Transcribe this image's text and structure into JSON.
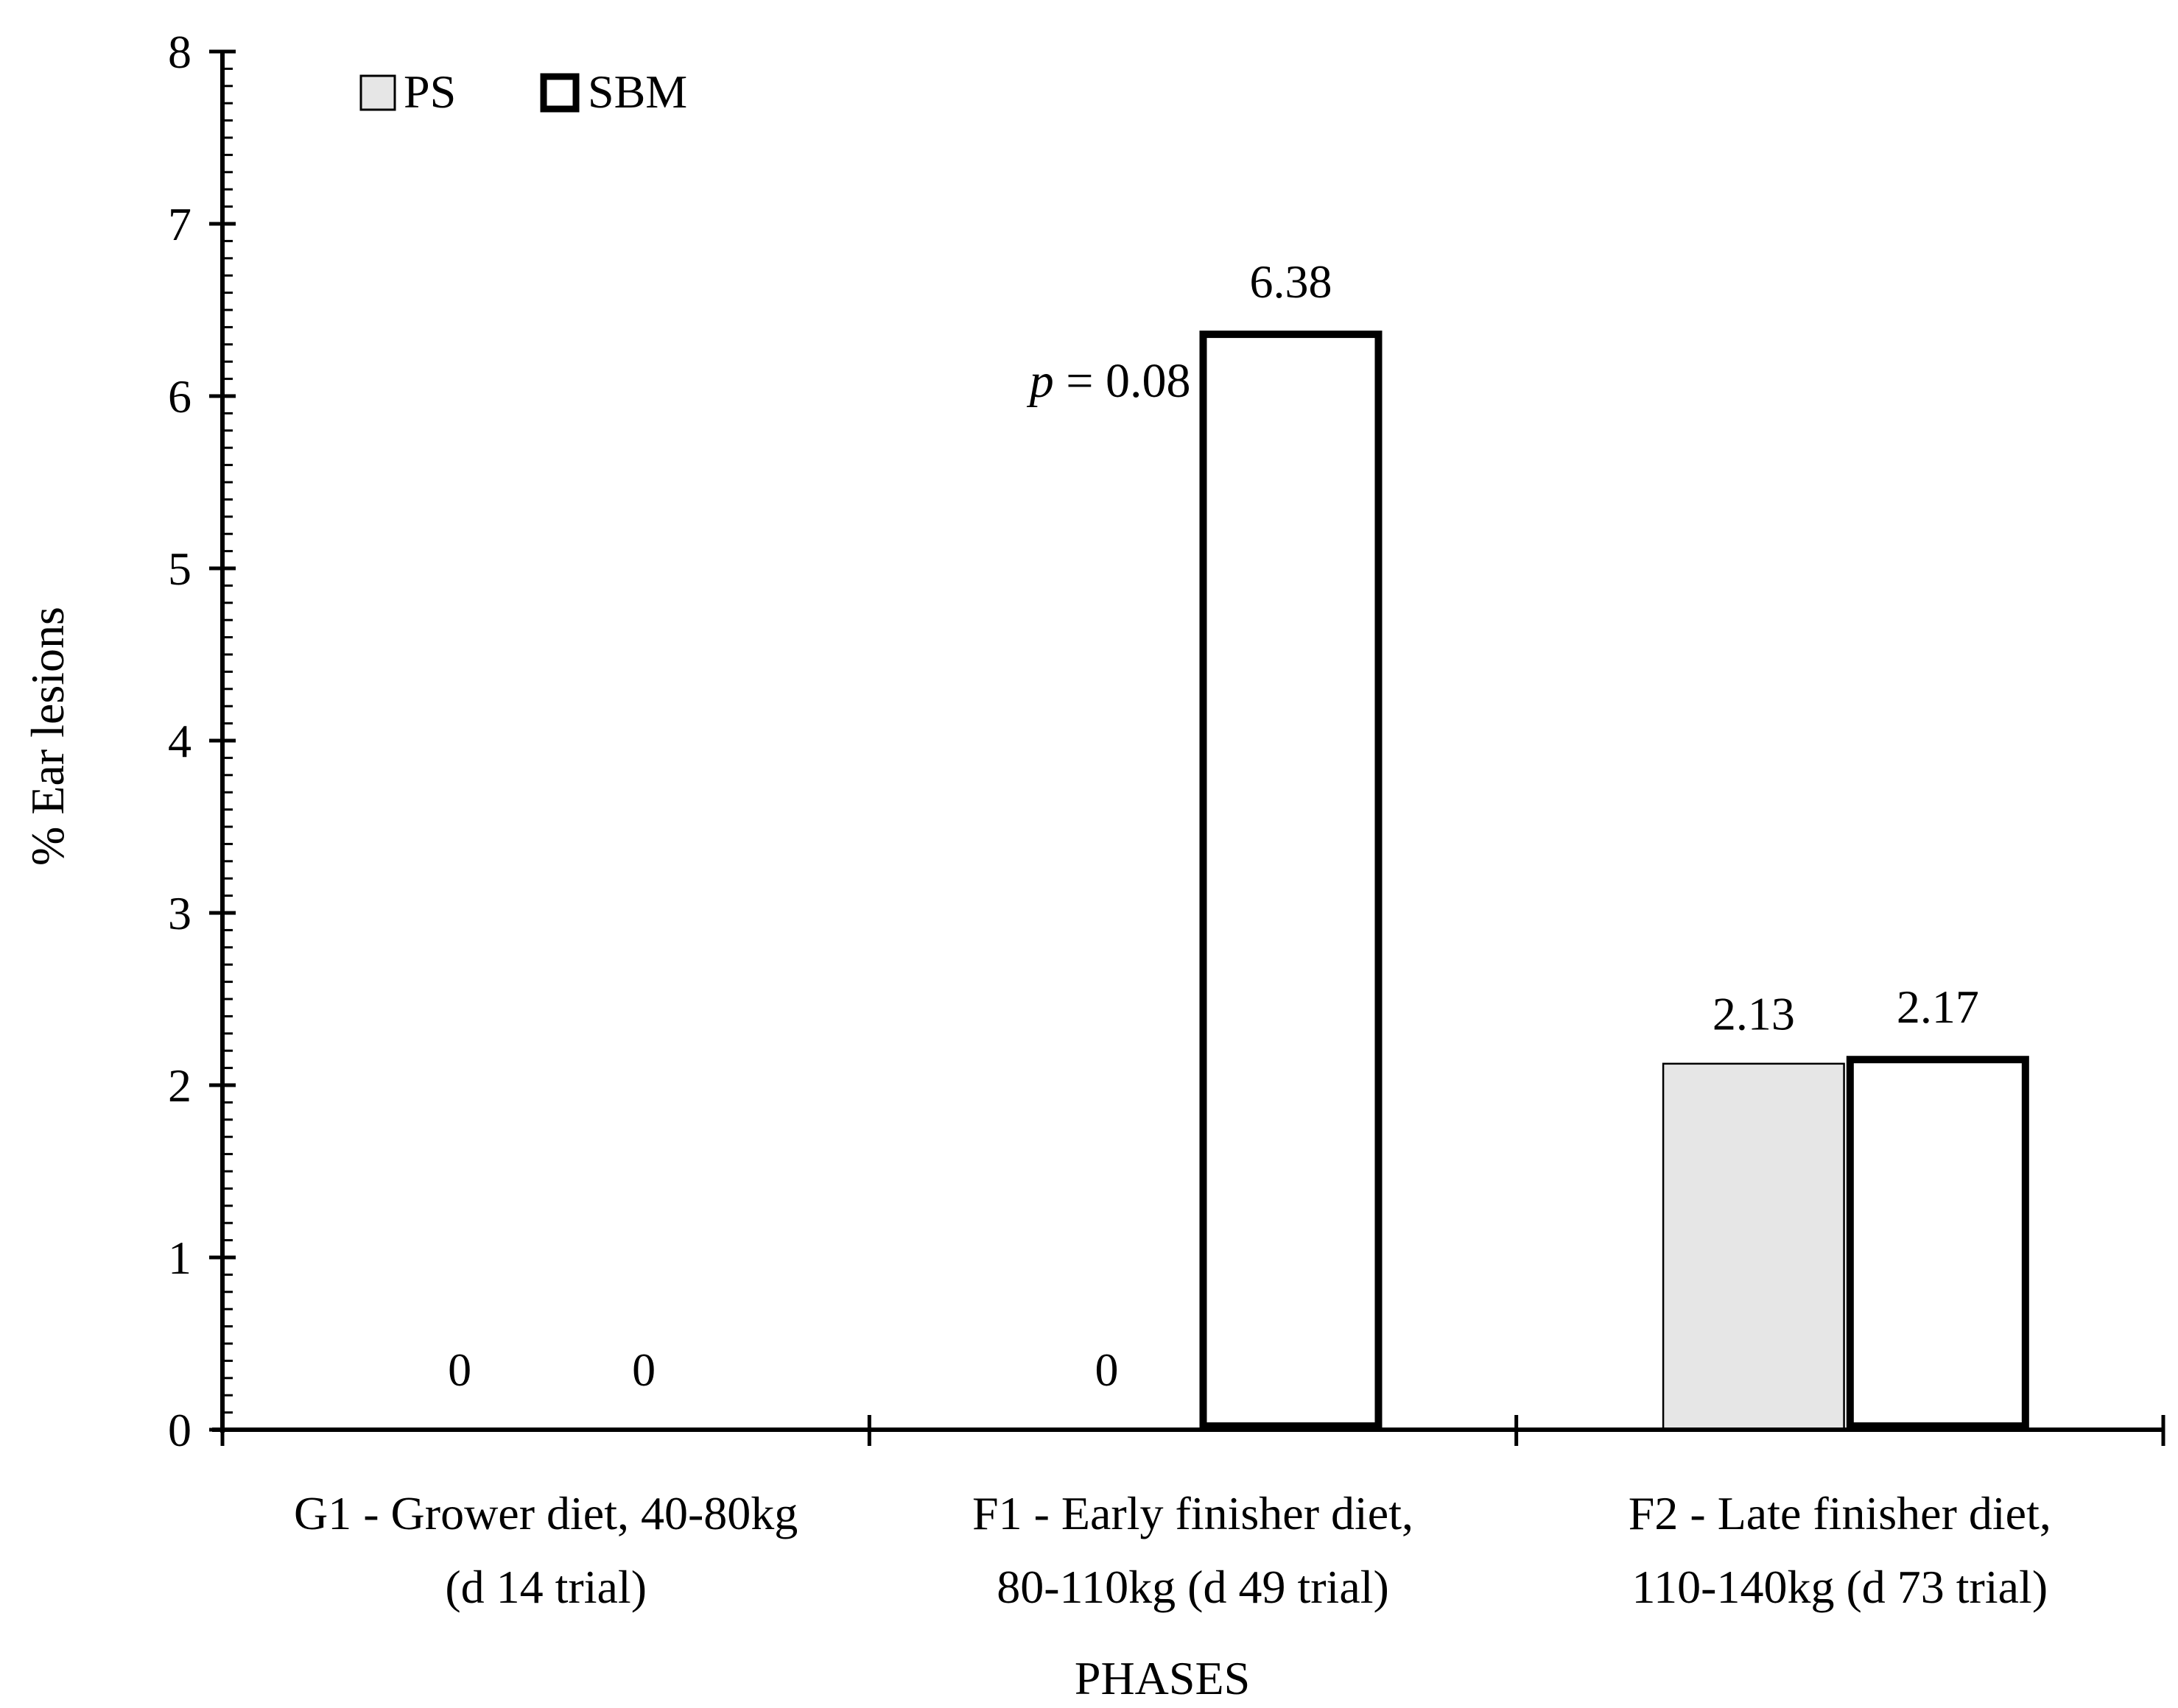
{
  "chart_data": {
    "type": "bar",
    "ylabel": "%  Ear lesions",
    "xlabel": "PHASES",
    "ylim": [
      0,
      8
    ],
    "yticks": [
      "0",
      "1",
      "2",
      "3",
      "4",
      "5",
      "6",
      "7",
      "8"
    ],
    "categories": [
      [
        "G1 - Grower diet, 40-80kg",
        "(d 14 trial)"
      ],
      [
        "F1 - Early finisher diet,",
        "80-110kg (d 49 trial)"
      ],
      [
        "F2 - Late finisher diet,",
        "110-140kg (d 73 trial)"
      ]
    ],
    "series": [
      {
        "name": "PS",
        "values": [
          0,
          0,
          2.13
        ],
        "labels": [
          "0",
          "0",
          "2.13"
        ],
        "fill": "#e6e6e6",
        "style": "thin"
      },
      {
        "name": "SBM",
        "values": [
          0,
          6.38,
          2.17
        ],
        "labels": [
          "0",
          "6.38",
          "2.17"
        ],
        "fill": "#ffffff",
        "style": "thick"
      }
    ],
    "annotation": {
      "italic": "p",
      "text": " = 0.08",
      "category_index": 1
    },
    "legend": {
      "position": "top-left"
    },
    "grid": false
  }
}
